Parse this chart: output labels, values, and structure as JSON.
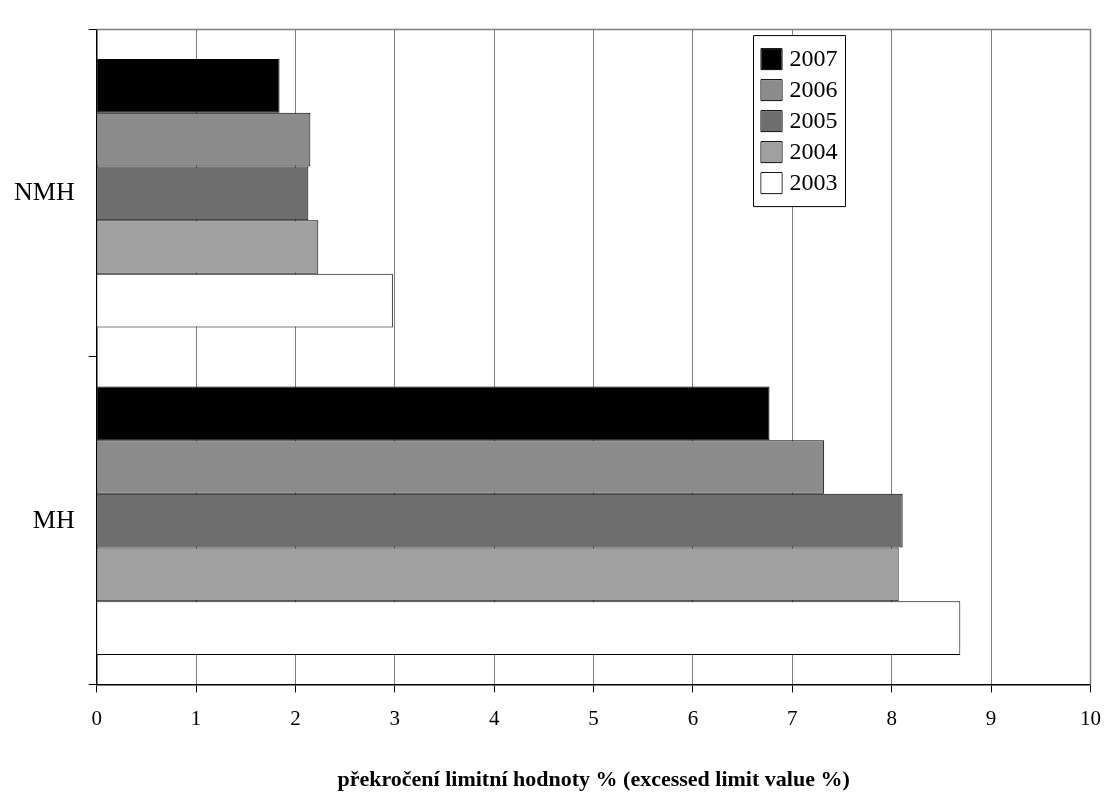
{
  "chart_data": {
    "type": "bar",
    "orientation": "horizontal",
    "xlabel": "překročení limitní hodnoty % (excessed limit value %)",
    "categories": [
      "NMH",
      "MH"
    ],
    "series": [
      {
        "name": "2007",
        "color": "#000000",
        "values": [
          1.84,
          6.77
        ]
      },
      {
        "name": "2006",
        "color": "#8c8c8c",
        "values": [
          2.15,
          7.32
        ]
      },
      {
        "name": "2005",
        "color": "#6e6e6e",
        "values": [
          2.13,
          8.11
        ]
      },
      {
        "name": "2004",
        "color": "#a0a0a0",
        "values": [
          2.23,
          8.07
        ]
      },
      {
        "name": "2003",
        "color": "#ffffff",
        "values": [
          2.98,
          8.69
        ]
      }
    ],
    "xlim": [
      0,
      10
    ],
    "xticks": [
      0,
      1,
      2,
      3,
      4,
      5,
      6,
      7,
      8,
      9,
      10
    ],
    "grid": "x",
    "legend": "top right"
  }
}
